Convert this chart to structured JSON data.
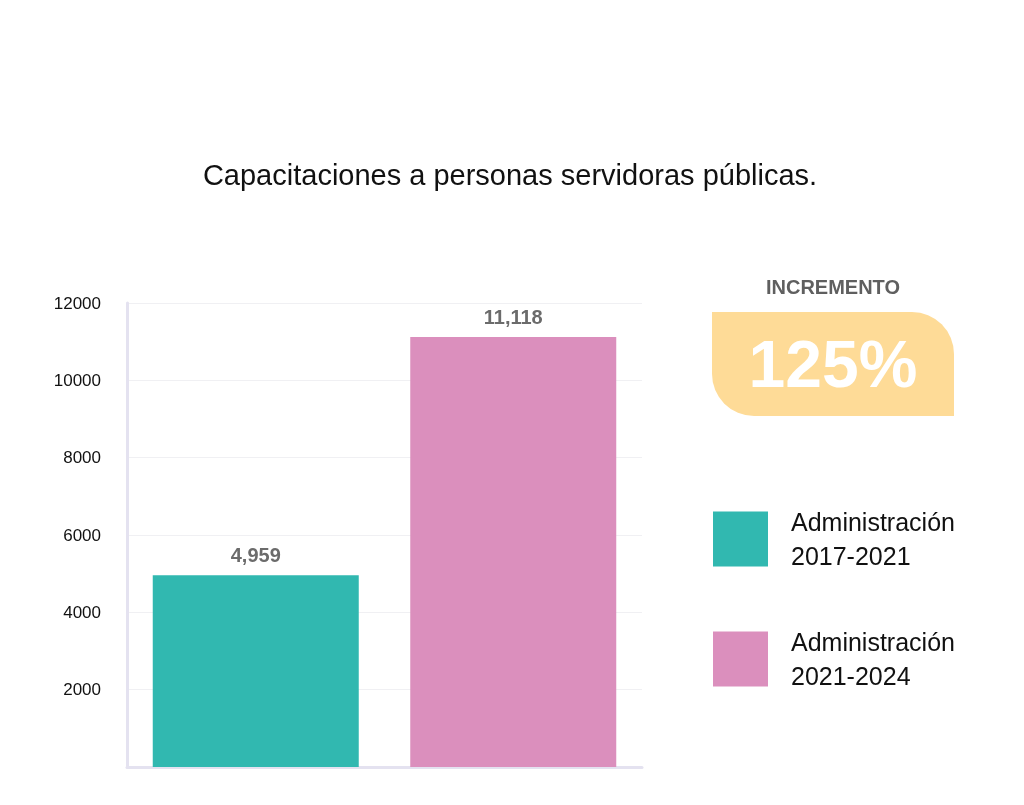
{
  "chart_data": {
    "type": "bar",
    "title": "Capacitaciones a personas servidoras públicas.",
    "categories": [
      null,
      null
    ],
    "series": [
      {
        "name": "Administración 2017-2021",
        "color": "#31b8b0",
        "values": [
          4959,
          null
        ],
        "value_labels": [
          "4,959",
          null
        ]
      },
      {
        "name": "Administración 2021-2024",
        "color": "#db8fbd",
        "values": [
          null,
          11118
        ],
        "value_labels": [
          null,
          "11,118"
        ]
      }
    ],
    "ylim": [
      0,
      12000
    ],
    "yticks": [
      2000,
      4000,
      6000,
      8000,
      10000,
      12000
    ],
    "grid": "y",
    "legend": "right",
    "annotations": [
      "INCREMENTO",
      "125%"
    ]
  }
}
